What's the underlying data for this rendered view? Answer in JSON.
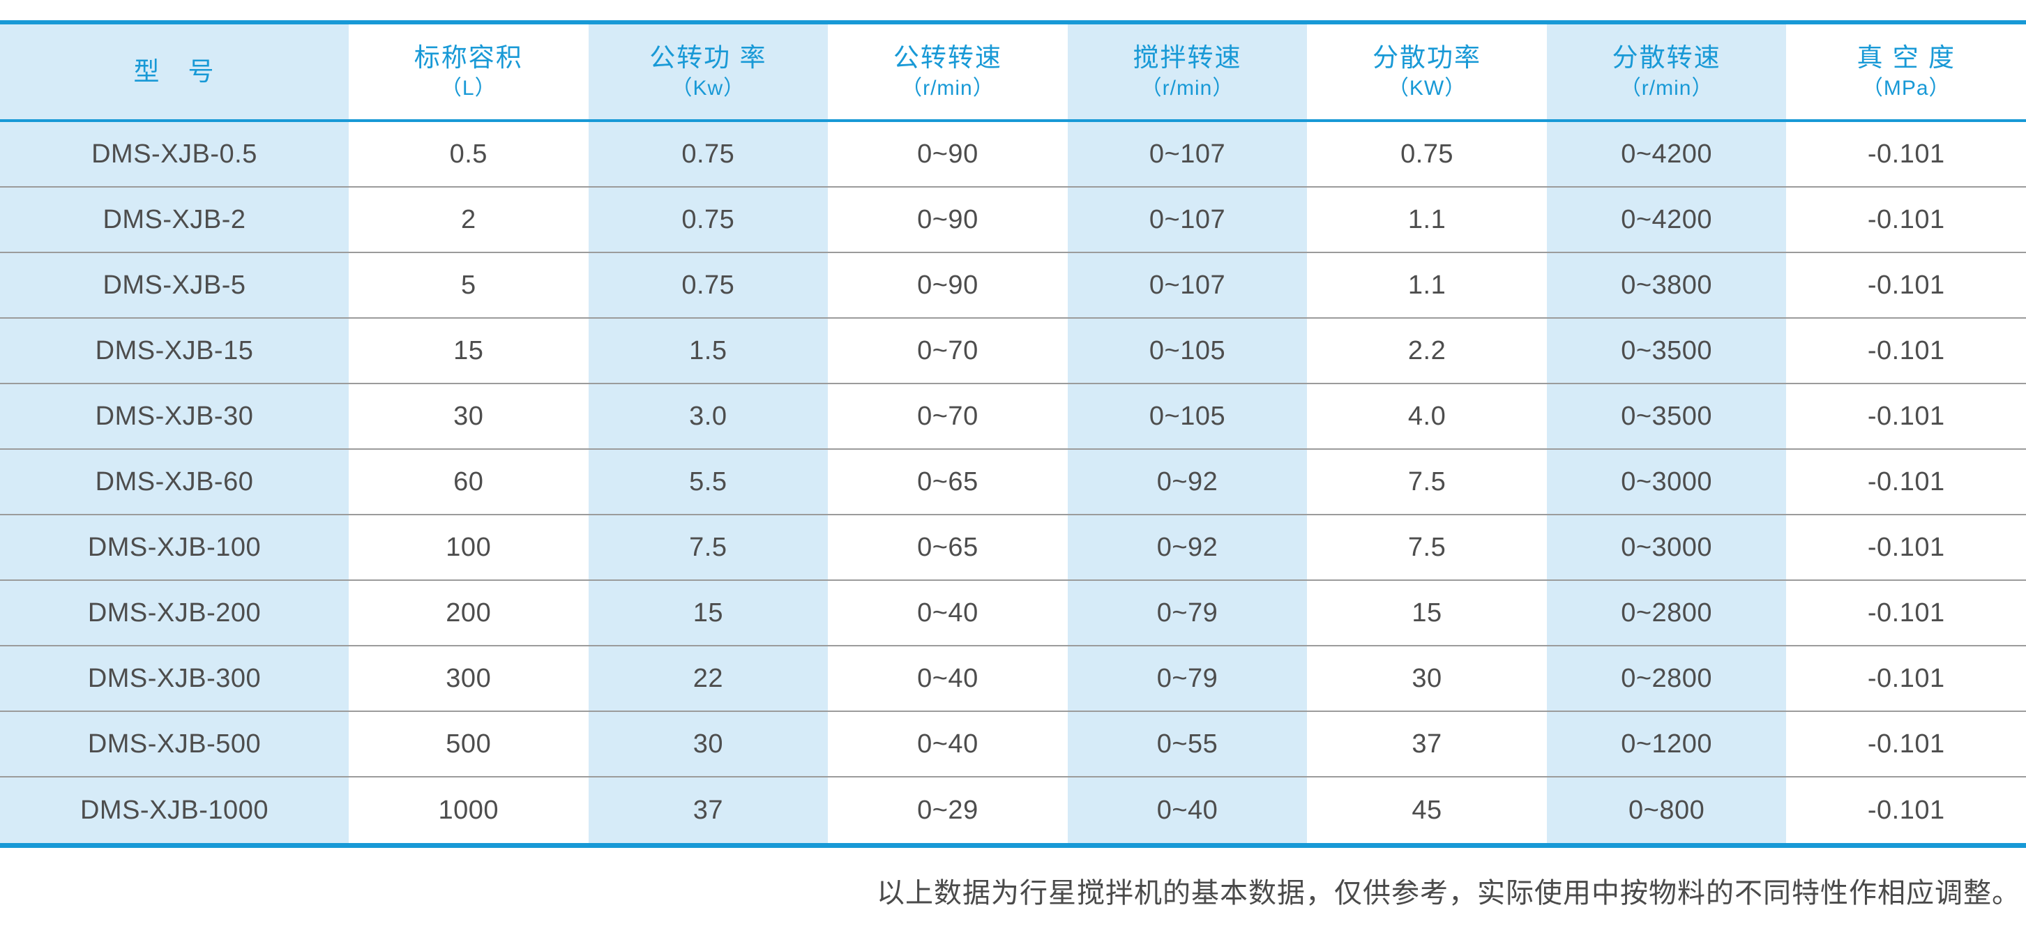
{
  "colors": {
    "accent_blue": "#1899d6",
    "stripe_light_blue": "#d6ebf8",
    "body_text": "#4d4d4d",
    "row_separator": "#9b9b9b"
  },
  "table": {
    "columns": [
      {
        "title": "型　号",
        "unit": ""
      },
      {
        "title": "标称容积",
        "unit": "（L）"
      },
      {
        "title": "公转功 率",
        "unit": "（Kw）"
      },
      {
        "title": "公转转速",
        "unit": "（r/min）"
      },
      {
        "title": "搅拌转速",
        "unit": "（r/min）"
      },
      {
        "title": "分散功率",
        "unit": "（KW）"
      },
      {
        "title": "分散转速",
        "unit": "（r/min）"
      },
      {
        "title": "真 空 度",
        "unit": "（MPa）"
      }
    ],
    "rows": [
      {
        "cells": [
          "DMS-XJB-0.5",
          "0.5",
          "0.75",
          "0~90",
          "0~107",
          "0.75",
          "0~4200",
          "-0.101"
        ]
      },
      {
        "cells": [
          "DMS-XJB-2",
          "2",
          "0.75",
          "0~90",
          "0~107",
          "1.1",
          "0~4200",
          "-0.101"
        ]
      },
      {
        "cells": [
          "DMS-XJB-5",
          "5",
          "0.75",
          "0~90",
          "0~107",
          "1.1",
          "0~3800",
          "-0.101"
        ]
      },
      {
        "cells": [
          "DMS-XJB-15",
          "15",
          "1.5",
          "0~70",
          "0~105",
          "2.2",
          "0~3500",
          "-0.101"
        ]
      },
      {
        "cells": [
          "DMS-XJB-30",
          "30",
          "3.0",
          "0~70",
          "0~105",
          "4.0",
          "0~3500",
          "-0.101"
        ]
      },
      {
        "cells": [
          "DMS-XJB-60",
          "60",
          "5.5",
          "0~65",
          "0~92",
          "7.5",
          "0~3000",
          "-0.101"
        ]
      },
      {
        "cells": [
          "DMS-XJB-100",
          "100",
          "7.5",
          "0~65",
          "0~92",
          "7.5",
          "0~3000",
          "-0.101"
        ]
      },
      {
        "cells": [
          "DMS-XJB-200",
          "200",
          "15",
          "0~40",
          "0~79",
          "15",
          "0~2800",
          "-0.101"
        ]
      },
      {
        "cells": [
          "DMS-XJB-300",
          "300",
          "22",
          "0~40",
          "0~79",
          "30",
          "0~2800",
          "-0.101"
        ]
      },
      {
        "cells": [
          "DMS-XJB-500",
          "500",
          "30",
          "0~40",
          "0~55",
          "37",
          "0~1200",
          "-0.101"
        ]
      },
      {
        "cells": [
          "DMS-XJB-1000",
          "1000",
          "37",
          "0~29",
          "0~40",
          "45",
          "0~800",
          "-0.101"
        ]
      }
    ]
  },
  "footnote": "以上数据为行星搅拌机的基本数据，仅供参考，实际使用中按物料的不同特性作相应调整。"
}
